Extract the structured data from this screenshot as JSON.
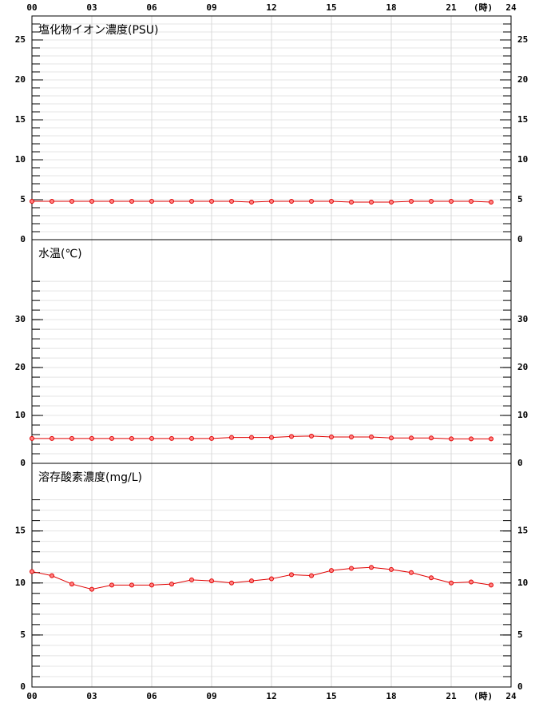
{
  "chart_data": [
    {
      "type": "line",
      "title": "塩化物イオン濃度(PSU)",
      "color": "#e00000",
      "marker_fill": "#ff8080",
      "x": [
        0,
        1,
        2,
        3,
        4,
        5,
        6,
        7,
        8,
        9,
        10,
        11,
        12,
        13,
        14,
        15,
        16,
        17,
        18,
        19,
        20,
        21,
        22,
        23
      ],
      "values": [
        4.8,
        4.8,
        4.8,
        4.8,
        4.8,
        4.8,
        4.8,
        4.8,
        4.8,
        4.8,
        4.8,
        4.7,
        4.8,
        4.8,
        4.8,
        4.8,
        4.7,
        4.7,
        4.7,
        4.8,
        4.8,
        4.8,
        4.8,
        4.7
      ],
      "xlim": [
        0,
        24
      ],
      "xticks": [
        {
          "value": 0,
          "label": "00"
        },
        {
          "value": 3,
          "label": "03"
        },
        {
          "value": 6,
          "label": "06"
        },
        {
          "value": 9,
          "label": "09"
        },
        12,
        15,
        18,
        21,
        24
      ],
      "xlabel": "(時)",
      "xaxis_labels": "top",
      "ylim": [
        0,
        28
      ],
      "yticks": [
        0,
        5,
        10,
        15,
        20,
        25
      ],
      "minor_ticks": {
        "step": 1,
        "max": 27
      },
      "grid": true
    },
    {
      "type": "line",
      "title": "水温(℃)",
      "color": "#e00000",
      "marker_fill": "#ff8080",
      "x": [
        0,
        1,
        2,
        3,
        4,
        5,
        6,
        7,
        8,
        9,
        10,
        11,
        12,
        13,
        14,
        15,
        16,
        17,
        18,
        19,
        20,
        21,
        22,
        23
      ],
      "values": [
        5.2,
        5.2,
        5.2,
        5.2,
        5.2,
        5.2,
        5.2,
        5.2,
        5.2,
        5.2,
        5.4,
        5.4,
        5.4,
        5.6,
        5.7,
        5.5,
        5.5,
        5.5,
        5.3,
        5.3,
        5.3,
        5.1,
        5.1,
        5.1
      ],
      "xlim": [
        0,
        24
      ],
      "xticks": [
        {
          "value": 0,
          "label": "00"
        },
        {
          "value": 3,
          "label": "03"
        },
        {
          "value": 6,
          "label": "06"
        },
        {
          "value": 9,
          "label": "09"
        },
        12,
        15,
        18,
        21,
        24
      ],
      "ylim": [
        0,
        46.7
      ],
      "yticks": [
        0,
        10,
        20,
        30
      ],
      "minor_ticks": {
        "step": 2,
        "max": 38
      },
      "grid": true
    },
    {
      "type": "line",
      "title": "溶存酸素濃度(mg/L)",
      "color": "#e00000",
      "marker_fill": "#ff8080",
      "x": [
        0,
        1,
        2,
        3,
        4,
        5,
        6,
        7,
        8,
        9,
        10,
        11,
        12,
        13,
        14,
        15,
        16,
        17,
        18,
        19,
        20,
        21,
        22,
        23
      ],
      "values": [
        11.1,
        10.7,
        9.9,
        9.4,
        9.8,
        9.8,
        9.8,
        9.9,
        10.3,
        10.2,
        10.0,
        10.2,
        10.4,
        10.8,
        10.7,
        11.2,
        11.4,
        11.5,
        11.3,
        11.0,
        10.5,
        10.0,
        10.1,
        9.8
      ],
      "xlim": [
        0,
        24
      ],
      "xticks": [
        {
          "value": 0,
          "label": "00"
        },
        {
          "value": 3,
          "label": "03"
        },
        {
          "value": 6,
          "label": "06"
        },
        {
          "value": 9,
          "label": "09"
        },
        12,
        15,
        18,
        21,
        24
      ],
      "xlabel": "(時)",
      "xaxis_labels": "bottom",
      "ylim": [
        0,
        21.5
      ],
      "yticks": [
        0,
        5,
        10,
        15
      ],
      "minor_ticks": {
        "step": 1,
        "max": 18
      },
      "grid": true
    }
  ]
}
